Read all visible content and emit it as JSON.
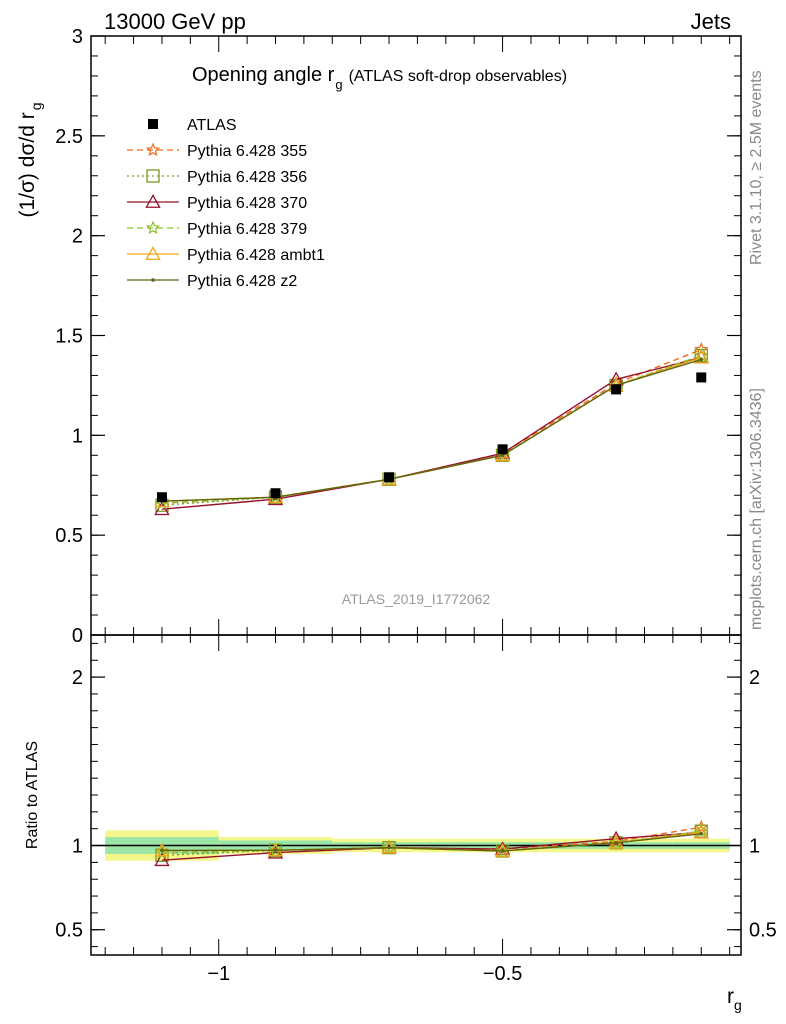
{
  "header": {
    "left": "13000 GeV pp",
    "right": "Jets"
  },
  "side_labels": {
    "rivet": "Rivet 3.1.10, ≥ 2.5M events",
    "mcplots": "mcplots.cern.ch [arXiv:1306.3436]"
  },
  "chart_data": {
    "type": "line",
    "title_main": "Opening angle r",
    "title_sub": "g",
    "title_paren": "(ATLAS soft-drop observables)",
    "analysis_id": "ATLAS_2019_I1772062",
    "ylabel_main": "(1/σ) dσ/d r",
    "ylabel_sub": "g",
    "xlabel_main": "r",
    "xlabel_sub": "g",
    "ratio_ylabel": "Ratio to ATLAS",
    "xlim": [
      -1.225,
      -0.08
    ],
    "ylim": [
      0,
      3
    ],
    "ratio_ylim": [
      0.35,
      2.25
    ],
    "x_ticks": [
      -1,
      -0.5
    ],
    "x_tick_labels": [
      "−1",
      "−0.5"
    ],
    "y_ticks": [
      0,
      0.5,
      1,
      1.5,
      2,
      2.5,
      3
    ],
    "y_tick_labels": [
      "0",
      "0.5",
      "1",
      "1.5",
      "2",
      "2.5",
      "3"
    ],
    "ratio_ticks": [
      0.5,
      1,
      2
    ],
    "ratio_tick_labels": [
      "0.5",
      "1",
      "2"
    ],
    "x": [
      -1.1,
      -0.9,
      -0.7,
      -0.5,
      -0.3,
      -0.15
    ],
    "bin_edges": [
      -1.2,
      -1.0,
      -0.8,
      -0.6,
      -0.4,
      -0.2,
      -0.1
    ],
    "data": {
      "name": "ATLAS",
      "values": [
        0.69,
        0.71,
        0.79,
        0.93,
        1.23,
        1.29
      ],
      "ratio_band_inner": [
        0.05,
        0.03,
        0.02,
        0.02,
        0.02,
        0.02
      ],
      "ratio_band_outer": [
        0.09,
        0.05,
        0.04,
        0.04,
        0.04,
        0.04
      ]
    },
    "series": [
      {
        "name": "Pythia 6.428 355",
        "color": "#ee6a1e",
        "dash": "6,4",
        "marker": "star",
        "values": [
          0.66,
          0.69,
          0.78,
          0.91,
          1.26,
          1.43
        ]
      },
      {
        "name": "Pythia 6.428 356",
        "color": "#7a9a1c",
        "dash": "2,3",
        "marker": "square",
        "values": [
          0.65,
          0.69,
          0.78,
          0.9,
          1.25,
          1.4
        ]
      },
      {
        "name": "Pythia 6.428 370",
        "color": "#99102a",
        "dash": "",
        "marker": "triangle",
        "values": [
          0.63,
          0.68,
          0.78,
          0.91,
          1.28,
          1.39
        ]
      },
      {
        "name": "Pythia 6.428 379",
        "color": "#8ec02e",
        "dash": "6,4",
        "marker": "star",
        "values": [
          0.66,
          0.69,
          0.78,
          0.9,
          1.25,
          1.4
        ]
      },
      {
        "name": "Pythia 6.428 ambt1",
        "color": "#f0a81a",
        "dash": "",
        "marker": "triangle",
        "values": [
          0.67,
          0.69,
          0.78,
          0.9,
          1.25,
          1.39
        ]
      },
      {
        "name": "Pythia 6.428 z2",
        "color": "#5c6610",
        "dash": "",
        "marker": "dot",
        "values": [
          0.67,
          0.69,
          0.78,
          0.9,
          1.25,
          1.38
        ]
      }
    ]
  }
}
